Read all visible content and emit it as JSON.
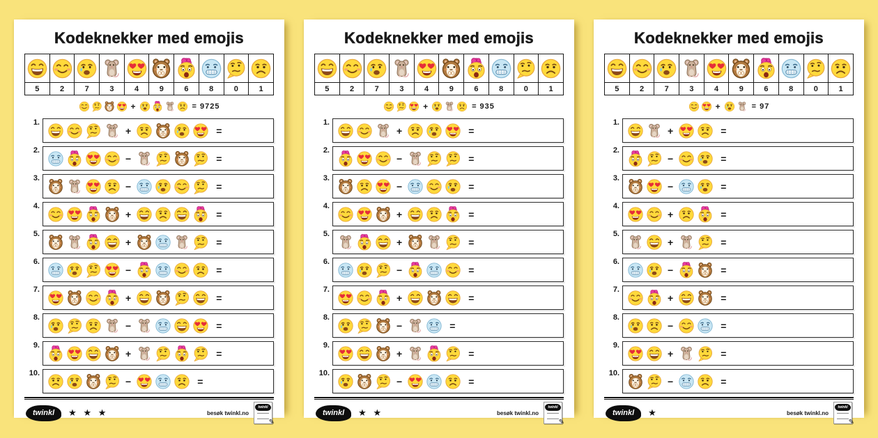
{
  "symbols": {
    "plus": "+",
    "minus": "−",
    "equals": "=",
    "star": "★",
    "pencil": "✎"
  },
  "footer": {
    "brand": "twinkl",
    "visit": "besøk twinkl.no"
  },
  "pages": [
    {
      "title": "Kodeknekker med emojis",
      "stars": 3,
      "key": {
        "emojis": [
          "grin",
          "smile",
          "cry",
          "mouse",
          "heart-eyes",
          "hamster",
          "shock",
          "cold",
          "think",
          "sad"
        ],
        "digits": [
          "5",
          "2",
          "7",
          "3",
          "4",
          "9",
          "6",
          "8",
          "0",
          "1"
        ]
      },
      "example": {
        "left": [
          "smile",
          "think",
          "hamster",
          "heart-eyes"
        ],
        "op": "plus",
        "right": [
          "cry",
          "shock",
          "mouse",
          "sad"
        ],
        "result": "= 9725"
      },
      "problems": [
        {
          "num": "1.",
          "left": [
            "grin",
            "smile",
            "think",
            "mouse"
          ],
          "op": "plus",
          "right": [
            "sad",
            "hamster",
            "cry",
            "heart-eyes"
          ]
        },
        {
          "num": "2.",
          "left": [
            "cold",
            "shock",
            "heart-eyes",
            "smile"
          ],
          "op": "minus",
          "right": [
            "mouse",
            "think",
            "hamster",
            "think"
          ]
        },
        {
          "num": "3.",
          "left": [
            "hamster",
            "mouse",
            "heart-eyes",
            "sad"
          ],
          "op": "minus",
          "right": [
            "cold",
            "cry",
            "smile",
            "think"
          ]
        },
        {
          "num": "4.",
          "left": [
            "smile",
            "heart-eyes",
            "shock",
            "hamster"
          ],
          "op": "plus",
          "right": [
            "grin",
            "sad",
            "grin",
            "shock"
          ]
        },
        {
          "num": "5.",
          "left": [
            "hamster",
            "mouse",
            "shock",
            "grin"
          ],
          "op": "plus",
          "right": [
            "hamster",
            "cold",
            "mouse",
            "think"
          ]
        },
        {
          "num": "6.",
          "left": [
            "cold",
            "cry",
            "think",
            "heart-eyes"
          ],
          "op": "minus",
          "right": [
            "shock",
            "cold",
            "smile",
            "sad"
          ]
        },
        {
          "num": "7.",
          "left": [
            "heart-eyes",
            "hamster",
            "smile",
            "shock"
          ],
          "op": "plus",
          "right": [
            "grin",
            "hamster",
            "think",
            "grin"
          ]
        },
        {
          "num": "8.",
          "left": [
            "cry",
            "think",
            "sad",
            "mouse"
          ],
          "op": "minus",
          "right": [
            "mouse",
            "cold",
            "grin",
            "heart-eyes"
          ]
        },
        {
          "num": "9.",
          "left": [
            "shock",
            "heart-eyes",
            "grin",
            "hamster"
          ],
          "op": "plus",
          "right": [
            "mouse",
            "think",
            "shock",
            "think"
          ]
        },
        {
          "num": "10.",
          "left": [
            "sad",
            "cry",
            "hamster",
            "think"
          ],
          "op": "minus",
          "right": [
            "heart-eyes",
            "cold",
            "sad"
          ]
        }
      ]
    },
    {
      "title": "Kodeknekker med emojis",
      "stars": 2,
      "key": {
        "emojis": [
          "grin",
          "smile",
          "cry",
          "mouse",
          "heart-eyes",
          "hamster",
          "shock",
          "cold",
          "think",
          "sad"
        ],
        "digits": [
          "5",
          "2",
          "7",
          "3",
          "4",
          "9",
          "6",
          "8",
          "0",
          "1"
        ]
      },
      "example": {
        "left": [
          "smile",
          "think",
          "heart-eyes"
        ],
        "op": "plus",
        "right": [
          "cry",
          "mouse",
          "sad"
        ],
        "result": "= 935"
      },
      "problems": [
        {
          "num": "1.",
          "left": [
            "grin",
            "smile",
            "mouse"
          ],
          "op": "plus",
          "right": [
            "sad",
            "cry",
            "heart-eyes"
          ]
        },
        {
          "num": "2.",
          "left": [
            "shock",
            "heart-eyes",
            "smile"
          ],
          "op": "minus",
          "right": [
            "mouse",
            "think",
            "think"
          ]
        },
        {
          "num": "3.",
          "left": [
            "hamster",
            "sad",
            "heart-eyes"
          ],
          "op": "minus",
          "right": [
            "cold",
            "smile",
            "cry"
          ]
        },
        {
          "num": "4.",
          "left": [
            "smile",
            "heart-eyes",
            "hamster"
          ],
          "op": "plus",
          "right": [
            "grin",
            "sad",
            "shock"
          ]
        },
        {
          "num": "5.",
          "left": [
            "mouse",
            "shock",
            "grin"
          ],
          "op": "plus",
          "right": [
            "hamster",
            "mouse",
            "think"
          ]
        },
        {
          "num": "6.",
          "left": [
            "cold",
            "cry",
            "think"
          ],
          "op": "minus",
          "right": [
            "shock",
            "cold",
            "smile"
          ]
        },
        {
          "num": "7.",
          "left": [
            "heart-eyes",
            "smile",
            "shock"
          ],
          "op": "plus",
          "right": [
            "grin",
            "hamster",
            "grin"
          ]
        },
        {
          "num": "8.",
          "left": [
            "cry",
            "think",
            "hamster"
          ],
          "op": "minus",
          "right": [
            "mouse",
            "cold"
          ]
        },
        {
          "num": "9.",
          "left": [
            "heart-eyes",
            "grin",
            "hamster"
          ],
          "op": "plus",
          "right": [
            "mouse",
            "shock",
            "think"
          ]
        },
        {
          "num": "10.",
          "left": [
            "cry",
            "hamster",
            "think"
          ],
          "op": "minus",
          "right": [
            "heart-eyes",
            "cold",
            "sad"
          ]
        }
      ]
    },
    {
      "title": "Kodeknekker med emojis",
      "stars": 1,
      "key": {
        "emojis": [
          "grin",
          "smile",
          "cry",
          "mouse",
          "heart-eyes",
          "hamster",
          "shock",
          "cold",
          "think",
          "sad"
        ],
        "digits": [
          "5",
          "2",
          "7",
          "3",
          "4",
          "9",
          "6",
          "8",
          "0",
          "1"
        ]
      },
      "example": {
        "left": [
          "smile",
          "heart-eyes"
        ],
        "op": "plus",
        "right": [
          "cry",
          "mouse"
        ],
        "result": "= 97"
      },
      "problems": [
        {
          "num": "1.",
          "left": [
            "grin",
            "mouse"
          ],
          "op": "plus",
          "right": [
            "heart-eyes",
            "sad"
          ]
        },
        {
          "num": "2.",
          "left": [
            "shock",
            "think"
          ],
          "op": "minus",
          "right": [
            "smile",
            "cry"
          ]
        },
        {
          "num": "3.",
          "left": [
            "hamster",
            "heart-eyes"
          ],
          "op": "minus",
          "right": [
            "cold",
            "cry"
          ]
        },
        {
          "num": "4.",
          "left": [
            "heart-eyes",
            "smile"
          ],
          "op": "plus",
          "right": [
            "sad",
            "shock"
          ]
        },
        {
          "num": "5.",
          "left": [
            "mouse",
            "grin"
          ],
          "op": "plus",
          "right": [
            "mouse",
            "think"
          ]
        },
        {
          "num": "6.",
          "left": [
            "cold",
            "cry"
          ],
          "op": "minus",
          "right": [
            "shock",
            "hamster"
          ]
        },
        {
          "num": "7.",
          "left": [
            "smile",
            "shock"
          ],
          "op": "plus",
          "right": [
            "grin",
            "hamster"
          ]
        },
        {
          "num": "8.",
          "left": [
            "cry",
            "sad"
          ],
          "op": "minus",
          "right": [
            "smile",
            "cold"
          ]
        },
        {
          "num": "9.",
          "left": [
            "heart-eyes",
            "grin"
          ],
          "op": "plus",
          "right": [
            "mouse",
            "think"
          ]
        },
        {
          "num": "10.",
          "left": [
            "hamster",
            "think"
          ],
          "op": "minus",
          "right": [
            "cold",
            "sad"
          ]
        }
      ]
    }
  ]
}
